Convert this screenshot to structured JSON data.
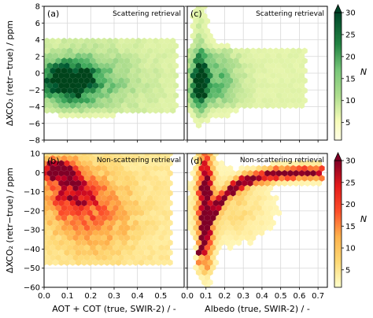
{
  "figure": {
    "ylabel_top": "ΔXCO₂ (retr−true) / ppm",
    "ylabel_bottom": "ΔXCO₂ (retr−true) / ppm",
    "xlabel_left": "AOT + COT (true, SWIR-2) / -",
    "xlabel_right": "Albedo (true, SWIR-2) / -",
    "colorbar_label": "N"
  },
  "chart_data": [
    {
      "type": "heatmap",
      "panel_label": "(a)",
      "annotation": "Scattering retrieval",
      "x_ticks": [
        "0.0",
        "0.1",
        "0.2",
        "0.3",
        "0.4",
        "0.5"
      ],
      "y_ticks": [
        "−8",
        "−6",
        "−4",
        "−2",
        "0",
        "2",
        "4",
        "6",
        "8"
      ],
      "xlim": [
        0,
        0.6
      ],
      "ylim": [
        -8,
        8
      ],
      "grid": true,
      "colormap": "Greens",
      "description_values": {
        "density_center_x": 0.1,
        "density_center_y": -1.0
      }
    },
    {
      "type": "heatmap",
      "panel_label": "(c)",
      "annotation": "Scattering retrieval",
      "x_ticks": [
        "0.0",
        "0.1",
        "0.2",
        "0.3",
        "0.4",
        "0.5",
        "0.6",
        "0.7"
      ],
      "y_ticks": [
        "−8",
        "−6",
        "−4",
        "−2",
        "0",
        "2",
        "4",
        "6",
        "8"
      ],
      "xlim": [
        0,
        0.75
      ],
      "ylim": [
        -8,
        8
      ],
      "grid": true,
      "colormap": "Greens",
      "description_values": {
        "density_center_x": 0.07,
        "density_center_y": -1.0
      }
    },
    {
      "type": "heatmap",
      "panel_label": "(b)",
      "annotation": "Non-scattering retrieval",
      "x_ticks": [
        "0.0",
        "0.1",
        "0.2",
        "0.3",
        "0.4",
        "0.5"
      ],
      "y_ticks": [
        "−60",
        "−50",
        "−40",
        "−30",
        "−20",
        "−10",
        "0",
        "10"
      ],
      "xlim": [
        0,
        0.6
      ],
      "ylim": [
        -60,
        10
      ],
      "grid": true,
      "colormap": "YlOrRd",
      "description_values": {
        "density_center_x": 0.06,
        "density_center_y": -5
      }
    },
    {
      "type": "heatmap",
      "panel_label": "(d)",
      "annotation": "Non-scattering retrieval",
      "x_ticks": [
        "0.0",
        "0.1",
        "0.2",
        "0.3",
        "0.4",
        "0.5",
        "0.6",
        "0.7"
      ],
      "y_ticks": [
        "−60",
        "−50",
        "−40",
        "−30",
        "−20",
        "−10",
        "0",
        "10"
      ],
      "xlim": [
        0,
        0.75
      ],
      "ylim": [
        -60,
        10
      ],
      "grid": true,
      "colormap": "YlOrRd",
      "description_values": {
        "density_center_x": 0.1,
        "density_center_y": -20
      }
    }
  ],
  "colorbars": [
    {
      "ticks": [
        "5",
        "10",
        "15",
        "20",
        "25",
        "30"
      ],
      "range": [
        1,
        30
      ],
      "extend": "max",
      "colors": [
        "#f7fcb9",
        "#d9f0a3",
        "#addd8e",
        "#78c679",
        "#41ab5d",
        "#238443",
        "#005a32",
        "#00441b"
      ]
    },
    {
      "ticks": [
        "5",
        "10",
        "15",
        "20",
        "25",
        "30"
      ],
      "range": [
        1,
        30
      ],
      "extend": "max",
      "colors": [
        "#ffffcc",
        "#ffeda0",
        "#fed976",
        "#feb24c",
        "#fd8d3c",
        "#fc4e2a",
        "#e31a1c",
        "#bd0026",
        "#800026"
      ]
    }
  ]
}
